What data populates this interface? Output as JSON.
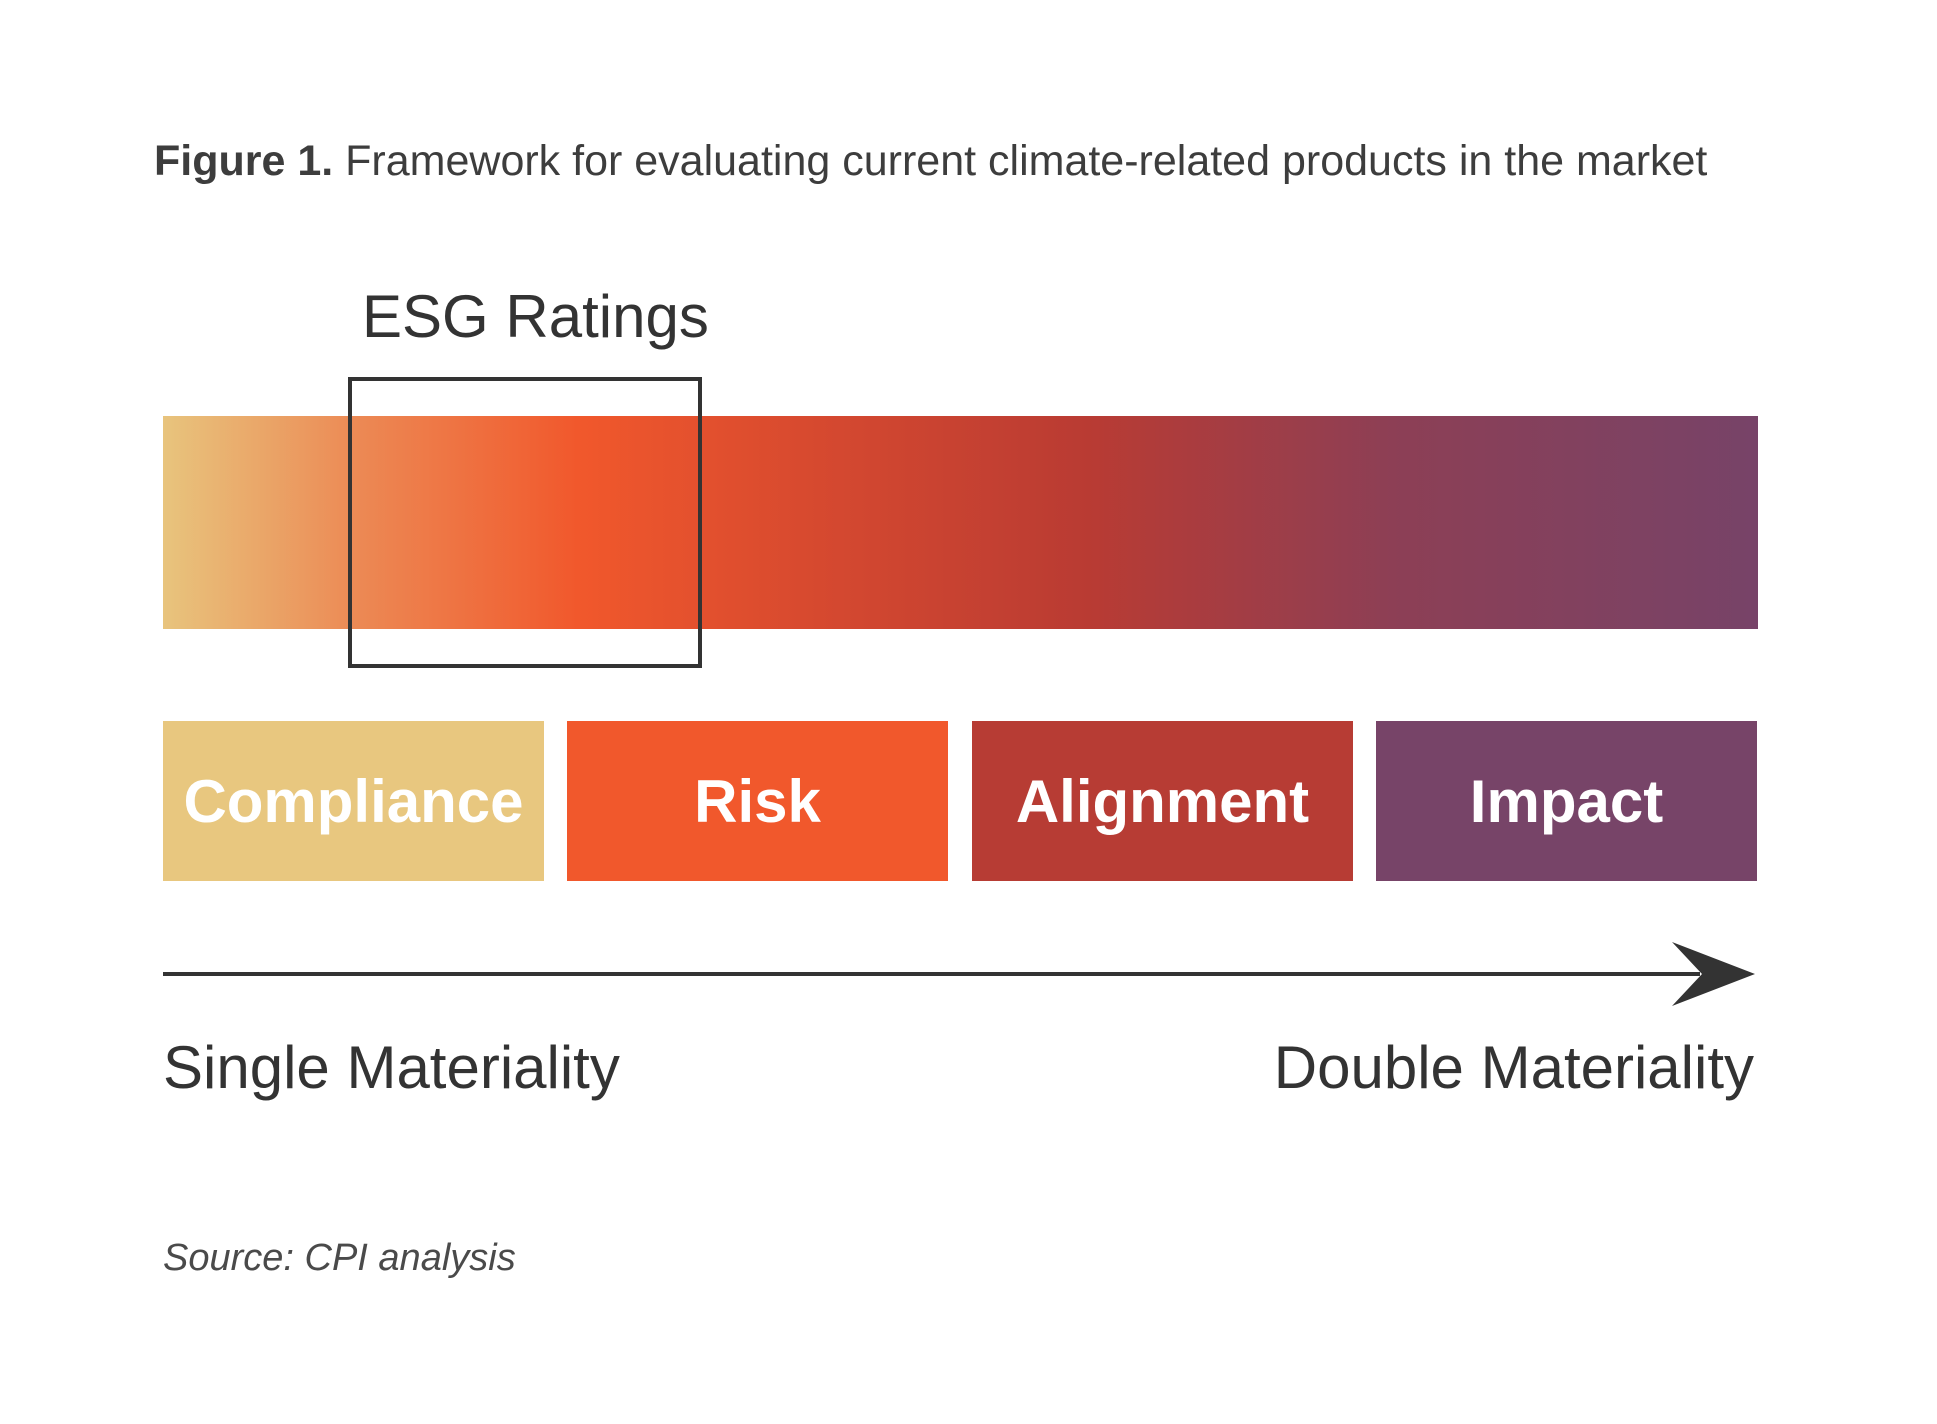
{
  "figure": {
    "label": "Figure 1.",
    "title": "Framework for evaluating current climate-related products in the market"
  },
  "highlight": {
    "label": "ESG Ratings"
  },
  "gradient": {
    "stops": [
      "#e8c47d",
      "#ec8a55",
      "#f1582c",
      "#d84a2f",
      "#b93b33",
      "#8d3f55",
      "#774368"
    ]
  },
  "categories": [
    {
      "label": "Compliance",
      "color": "#e8c77f"
    },
    {
      "label": "Risk",
      "color": "#f1582c"
    },
    {
      "label": "Alignment",
      "color": "#b73c34"
    },
    {
      "label": "Impact",
      "color": "#774468"
    }
  ],
  "axis": {
    "start_label": "Single Materiality",
    "end_label": "Double Materiality",
    "color": "#333333"
  },
  "source": "Source: CPI analysis"
}
